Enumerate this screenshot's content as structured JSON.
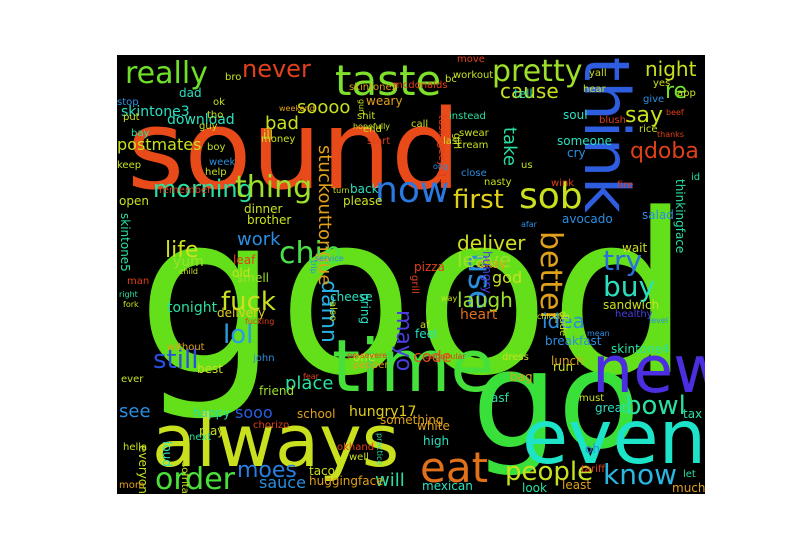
{
  "colors": {
    "background": "#000000",
    "page": "#ffffff"
  },
  "words": [
    {
      "text": "good",
      "color": "#64e01a"
    },
    {
      "text": "sound",
      "color": "#e84a1a"
    },
    {
      "text": "go",
      "color": "#39e03a"
    },
    {
      "text": "time",
      "color": "#45e03a"
    },
    {
      "text": "always",
      "color": "#c9e01f"
    },
    {
      "text": "even",
      "color": "#1de3c8"
    },
    {
      "text": "new",
      "color": "#4a2ee0"
    },
    {
      "text": "think",
      "color": "#2e5de0"
    },
    {
      "text": "taste",
      "color": "#7ee02a"
    },
    {
      "text": "eat",
      "color": "#e0701a"
    },
    {
      "text": "sob",
      "color": "#c9e01f"
    },
    {
      "text": "now",
      "color": "#2a78e0"
    },
    {
      "text": "really",
      "color": "#6ee02a"
    },
    {
      "text": "pretty",
      "color": "#9de02a"
    },
    {
      "text": "never",
      "color": "#e0401a"
    },
    {
      "text": "order",
      "color": "#4ae03a"
    },
    {
      "text": "people",
      "color": "#c9e01f"
    },
    {
      "text": "know",
      "color": "#2ab6e0"
    },
    {
      "text": "morning",
      "color": "#2ae0a0"
    },
    {
      "text": "thing",
      "color": "#9de02a"
    },
    {
      "text": "fuck",
      "color": "#c9e01f"
    },
    {
      "text": "first",
      "color": "#e0d01a"
    },
    {
      "text": "better",
      "color": "#e0a01a"
    },
    {
      "text": "use",
      "color": "#2a8ee0"
    },
    {
      "text": "buy",
      "color": "#2ae0c0"
    },
    {
      "text": "try",
      "color": "#2a6ee0"
    },
    {
      "text": "lol",
      "color": "#2a9ee0"
    },
    {
      "text": "still",
      "color": "#2a4ee0"
    },
    {
      "text": "bowl",
      "color": "#2ae0a0"
    },
    {
      "text": "moes",
      "color": "#2a7ee0"
    },
    {
      "text": "damn",
      "color": "#2ab0e0"
    },
    {
      "text": "mayo",
      "color": "#4a3ee0"
    },
    {
      "text": "chip",
      "color": "#4ae04a"
    },
    {
      "text": "life",
      "color": "#d0e01f"
    },
    {
      "text": "work",
      "color": "#2a8ee0"
    },
    {
      "text": "qdoba",
      "color": "#e0401a"
    },
    {
      "text": "say",
      "color": "#c9e01f"
    },
    {
      "text": "night",
      "color": "#c9e01f"
    },
    {
      "text": "re",
      "color": "#6ee02a"
    },
    {
      "text": "cause",
      "color": "#c9e01f"
    },
    {
      "text": "soooo",
      "color": "#c9e01f"
    },
    {
      "text": "skintone3",
      "color": "#2ae0c0"
    },
    {
      "text": "laugh",
      "color": "#9de02a"
    },
    {
      "text": "idea",
      "color": "#2a8ee0"
    },
    {
      "text": "deliver",
      "color": "#d0e01f"
    },
    {
      "text": "leave",
      "color": "#9de02a"
    },
    {
      "text": "stuckouttongue",
      "color": "#e0a01a"
    },
    {
      "text": "take",
      "color": "#2ae0a0"
    },
    {
      "text": "see",
      "color": "#2a8ee0"
    },
    {
      "text": "sooo",
      "color": "#2a5ee0"
    },
    {
      "text": "sauce",
      "color": "#2a8ee0"
    },
    {
      "text": "will",
      "color": "#2ae0a0"
    },
    {
      "text": "code",
      "color": "#e0501a"
    },
    {
      "text": "heart",
      "color": "#e0701a"
    },
    {
      "text": "god",
      "color": "#c9e01f"
    },
    {
      "text": "place",
      "color": "#2ae0a0"
    },
    {
      "text": "bad",
      "color": "#c9e01f"
    },
    {
      "text": "download",
      "color": "#2ae0c0"
    },
    {
      "text": "postmates",
      "color": "#c9e01f"
    },
    {
      "text": "hungry17",
      "color": "#e0d01a"
    },
    {
      "text": "tonight",
      "color": "#2ae0a0"
    },
    {
      "text": "yum",
      "color": "#9de02a"
    },
    {
      "text": "delivery",
      "color": "#e0d01a"
    },
    {
      "text": "okay",
      "color": "#e0a01a"
    },
    {
      "text": "hungry",
      "color": "#4a3ee0"
    },
    {
      "text": "pizza",
      "color": "#e0401a"
    },
    {
      "text": "cheese",
      "color": "#2ae0c0"
    },
    {
      "text": "leaf",
      "color": "#e0401a"
    },
    {
      "text": "smell",
      "color": "#9de02a"
    },
    {
      "text": "old",
      "color": "#c9e01f"
    },
    {
      "text": "dad",
      "color": "#2ae0c0"
    },
    {
      "text": "ill",
      "color": "#c9e01f"
    },
    {
      "text": "tell",
      "color": "#2ae0c0"
    },
    {
      "text": "weary",
      "color": "#e0a01a"
    },
    {
      "text": "soul",
      "color": "#2ae0c0"
    },
    {
      "text": "cry",
      "color": "#2a8ee0"
    },
    {
      "text": "someone",
      "color": "#2ae0c0"
    },
    {
      "text": "skintone5",
      "color": "#2ae0a0"
    },
    {
      "text": "skintone4",
      "color": "#2ae0a0"
    },
    {
      "text": "skintone2",
      "color": "#e0a01a"
    },
    {
      "text": "thinkingface",
      "color": "#2ae0a0"
    },
    {
      "text": "bring",
      "color": "#2ae0c0"
    },
    {
      "text": "please",
      "color": "#c9e01f"
    },
    {
      "text": "back",
      "color": "#2ae0c0"
    },
    {
      "text": "dinner",
      "color": "#c9e01f"
    },
    {
      "text": "brother",
      "color": "#c9e01f"
    },
    {
      "text": "wait",
      "color": "#c9e01f"
    },
    {
      "text": "salad",
      "color": "#2a8ee0"
    },
    {
      "text": "avocado",
      "color": "#2a8ee0"
    },
    {
      "text": "breakfast",
      "color": "#2a8ee0"
    },
    {
      "text": "sandwich",
      "color": "#c9e01f"
    },
    {
      "text": "healthy",
      "color": "#4a3ee0"
    },
    {
      "text": "lunch",
      "color": "#e0a01a"
    },
    {
      "text": "bag",
      "color": "#e0a01a"
    },
    {
      "text": "run",
      "color": "#c9e01f"
    },
    {
      "text": "feel",
      "color": "#2ae0c0"
    },
    {
      "text": "af",
      "color": "#c9e01f"
    },
    {
      "text": "high",
      "color": "#2ae0c0"
    },
    {
      "text": "white",
      "color": "#e0a01a"
    },
    {
      "text": "something",
      "color": "#e0a01a"
    },
    {
      "text": "mexican",
      "color": "#2ae0c0"
    },
    {
      "text": "look",
      "color": "#2ae0a0"
    },
    {
      "text": "least",
      "color": "#e0a01a"
    },
    {
      "text": "great",
      "color": "#2ae0c0"
    },
    {
      "text": "tax",
      "color": "#2ae0a0"
    },
    {
      "text": "let",
      "color": "#2ae0a0"
    },
    {
      "text": "much",
      "color": "#e0a01a"
    },
    {
      "text": "oh",
      "color": "#2a8ee0"
    },
    {
      "text": "asf",
      "color": "#2ae0a0"
    },
    {
      "text": "taco",
      "color": "#c9e01f"
    },
    {
      "text": "huggingface",
      "color": "#e0a01a"
    },
    {
      "text": "school",
      "color": "#e0a01a"
    },
    {
      "text": "friend",
      "color": "#9de02a"
    },
    {
      "text": "happy",
      "color": "#2ae0a0"
    },
    {
      "text": "play",
      "color": "#c9e01f"
    },
    {
      "text": "next",
      "color": "#2ae0a0"
    },
    {
      "text": "loud",
      "color": "#2ae0c0"
    },
    {
      "text": "hella",
      "color": "#c9e01f"
    },
    {
      "text": "everyone",
      "color": "#c9e01f"
    },
    {
      "text": "mom",
      "color": "#e0a01a"
    },
    {
      "text": "ever",
      "color": "#c9e01f"
    },
    {
      "text": "best",
      "color": "#c9e01f"
    },
    {
      "text": "one",
      "color": "#c9e01f"
    },
    {
      "text": "john",
      "color": "#2a8ee0"
    },
    {
      "text": "well",
      "color": "#c9e01f"
    },
    {
      "text": "sofritas",
      "color": "#c9e01f"
    },
    {
      "text": "okhand",
      "color": "#e0401a"
    },
    {
      "text": "chorizo",
      "color": "#e0401a"
    },
    {
      "text": "pepper",
      "color": "#e0a01a"
    },
    {
      "text": "without",
      "color": "#e0a01a"
    },
    {
      "text": "bro",
      "color": "#c9e01f"
    },
    {
      "text": "ok",
      "color": "#c9e01f"
    },
    {
      "text": "guy",
      "color": "#c9e01f"
    },
    {
      "text": "boy",
      "color": "#c9e01f"
    },
    {
      "text": "put",
      "color": "#c9e01f"
    },
    {
      "text": "bay",
      "color": "#2ae0a0"
    },
    {
      "text": "stop",
      "color": "#2a8ee0"
    },
    {
      "text": "keep",
      "color": "#c9e01f"
    },
    {
      "text": "open",
      "color": "#c9e01f"
    },
    {
      "text": "help",
      "color": "#c9e01f"
    },
    {
      "text": "week",
      "color": "#2a8ee0"
    },
    {
      "text": "remember",
      "color": "#e0401a"
    },
    {
      "text": "money",
      "color": "#c9e01f"
    },
    {
      "text": "end",
      "color": "#c9e01f"
    },
    {
      "text": "shit",
      "color": "#c9e01f"
    },
    {
      "text": "instead",
      "color": "#2ae0a0"
    },
    {
      "text": "workout",
      "color": "#c9e01f"
    },
    {
      "text": "mcdonalds",
      "color": "#e0401a"
    },
    {
      "text": "tho",
      "color": "#c9e01f"
    },
    {
      "text": "call",
      "color": "#c9e01f"
    },
    {
      "text": "swear",
      "color": "#c9e01f"
    },
    {
      "text": "cream",
      "color": "#c9e01f"
    },
    {
      "text": "start",
      "color": "#e0401a"
    },
    {
      "text": "tuskegeeys17",
      "color": "#e0401a"
    },
    {
      "text": "last",
      "color": "#c9e01f"
    },
    {
      "text": "girl",
      "color": "#c9e01f"
    },
    {
      "text": "us",
      "color": "#c9e01f"
    },
    {
      "text": "close",
      "color": "#2a8ee0"
    },
    {
      "text": "nasty",
      "color": "#c9e01f"
    },
    {
      "text": "wink",
      "color": "#e0401a"
    },
    {
      "text": "fire",
      "color": "#e0401a"
    },
    {
      "text": "bc",
      "color": "#c9e01f"
    },
    {
      "text": "move",
      "color": "#e0401a"
    },
    {
      "text": "yall",
      "color": "#c9e01f"
    },
    {
      "text": "hear",
      "color": "#c9e01f"
    },
    {
      "text": "blush",
      "color": "#e0401a"
    },
    {
      "text": "give",
      "color": "#2a8ee0"
    },
    {
      "text": "rice",
      "color": "#c9e01f"
    },
    {
      "text": "yes",
      "color": "#c9e01f"
    },
    {
      "text": "app",
      "color": "#c9e01f"
    },
    {
      "text": "id",
      "color": "#2ae0a0"
    },
    {
      "text": "beef",
      "color": "#e0401a"
    },
    {
      "text": "dude",
      "color": "#c9e01f"
    },
    {
      "text": "dress",
      "color": "#c9e01f"
    },
    {
      "text": "must",
      "color": "#c9e01f"
    },
    {
      "text": "mean",
      "color": "#2a8ee0"
    },
    {
      "text": "man",
      "color": "#e0401a"
    },
    {
      "text": "child",
      "color": "#c9e01f"
    },
    {
      "text": "right",
      "color": "#2ae0a0"
    },
    {
      "text": "fork",
      "color": "#c9e01f"
    },
    {
      "text": "fucking",
      "color": "#e0401a"
    },
    {
      "text": "service",
      "color": "#2a8ee0"
    },
    {
      "text": "trip",
      "color": "#2a8ee0"
    },
    {
      "text": "also",
      "color": "#c9e01f"
    },
    {
      "text": "grill",
      "color": "#e0401a"
    },
    {
      "text": "way",
      "color": "#c9e01f"
    },
    {
      "text": "persevere",
      "color": "#e0401a"
    },
    {
      "text": "unpopular",
      "color": "#e0401a"
    },
    {
      "text": "practice",
      "color": "#2ae0a0"
    },
    {
      "text": "tariff",
      "color": "#e0401a"
    },
    {
      "text": "chickfila",
      "color": "#c9e01f"
    },
    {
      "text": "weekend",
      "color": "#e0a01a"
    },
    {
      "text": "thanks",
      "color": "#e0401a"
    },
    {
      "text": "hopefully",
      "color": "#c9e01f"
    },
    {
      "text": "ong",
      "color": "#2a8ee0"
    },
    {
      "text": "level",
      "color": "#2a8ee0"
    },
    {
      "text": "afar",
      "color": "#2a8ee0"
    },
    {
      "text": "gurl",
      "color": "#c9e01f"
    },
    {
      "text": "fear",
      "color": "#e0401a"
    },
    {
      "text": "turn",
      "color": "#c9e01f"
    }
  ]
}
